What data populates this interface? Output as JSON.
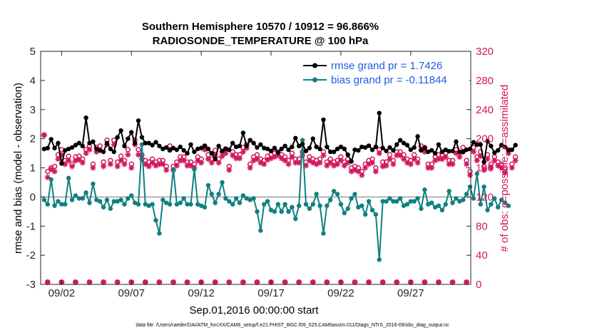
{
  "chart_data": {
    "type": "line",
    "title": "Southern Hemisphere 10570 / 10912 = 96.866%",
    "subtitle": "RADIOSONDE_TEMPERATURE @ 100 hPa",
    "xlabel": "Sep.01,2016 00:00:00 start",
    "ylabel": "rmse and bias (model - observation)",
    "ylabel_right": "# of obs: o=possible; ×=assimilated",
    "ylim": [
      -3,
      5
    ],
    "ylim_right": [
      0,
      320
    ],
    "xlim": [
      0.5,
      31.3
    ],
    "x_ticks": [
      {
        "x": 2,
        "label": "09/02"
      },
      {
        "x": 7,
        "label": "09/07"
      },
      {
        "x": 12,
        "label": "09/12"
      },
      {
        "x": 17,
        "label": "09/17"
      },
      {
        "x": 22,
        "label": "09/22"
      },
      {
        "x": 27,
        "label": "09/27"
      }
    ],
    "y_ticks": [
      "-3",
      "-2",
      "-1",
      "0",
      "1",
      "2",
      "3",
      "4",
      "5"
    ],
    "y_ticks_right": [
      "0",
      "40",
      "80",
      "120",
      "160",
      "200",
      "240",
      "280",
      "320"
    ],
    "zero_line": 0,
    "legend": [
      {
        "label": "rmse grand pr = 1.7426",
        "color": "#000000",
        "marker": "filled-circle"
      },
      {
        "label": "bias grand pr = -0.11844",
        "color": "#0f8080",
        "marker": "filled-circle"
      }
    ],
    "series": [
      {
        "name": "rmse",
        "color": "#000000",
        "values": [
          1.65,
          1.68,
          1.98,
          1.68,
          1.85,
          1.15,
          1.6,
          1.65,
          1.7,
          1.78,
          1.85,
          1.75,
          2.72,
          1.85,
          1.9,
          1.65,
          1.6,
          1.55,
          1.85,
          1.65,
          1.55,
          2.05,
          2.28,
          1.75,
          2.0,
          2.22,
          1.85,
          2.62,
          2.05,
          1.85,
          1.85,
          1.78,
          1.88,
          1.75,
          1.65,
          1.7,
          1.6,
          1.68,
          1.62,
          1.72,
          1.6,
          1.5,
          1.8,
          1.55,
          1.65,
          1.68,
          1.75,
          1.65,
          1.5,
          1.3,
          1.75,
          1.58,
          1.65,
          1.62,
          1.85,
          1.72,
          1.75,
          2.2,
          1.75,
          1.95,
          1.85,
          1.7,
          1.8,
          1.68,
          1.65,
          1.58,
          1.68,
          1.52,
          1.65,
          1.75,
          1.62,
          1.72,
          2.02,
          1.75,
          1.82,
          1.58,
          1.68,
          2.0,
          1.72,
          1.65,
          2.65,
          1.72,
          1.55,
          1.55,
          1.65,
          1.72,
          1.65,
          1.45,
          1.22,
          1.62,
          1.6,
          1.72,
          1.7,
          1.76,
          1.62,
          1.72,
          2.88,
          1.68,
          1.58,
          1.7,
          1.6,
          1.8,
          1.95,
          1.85,
          1.78,
          1.62,
          1.7,
          2.08,
          1.6,
          1.68,
          1.55,
          1.6,
          1.5,
          1.8,
          1.55,
          1.62,
          1.57,
          1.58,
          1.9,
          1.55,
          1.55,
          1.62,
          1.65,
          1.88,
          1.8,
          1.8,
          1.2,
          1.92,
          1.75,
          1.52,
          1.6,
          1.78,
          1.72,
          1.6,
          1.62,
          1.78
        ]
      },
      {
        "name": "bias",
        "color": "#0f8080",
        "values": [
          -0.1,
          -0.25,
          0.6,
          -0.3,
          -0.15,
          -0.25,
          -0.25,
          0.65,
          -0.1,
          0.05,
          -0.05,
          -0.05,
          0.15,
          -0.2,
          0.45,
          -0.1,
          -0.15,
          -0.35,
          -0.1,
          -0.4,
          -0.15,
          -0.15,
          -0.1,
          -0.25,
          -0.05,
          0.05,
          -0.2,
          -0.25,
          1.8,
          -0.25,
          -0.3,
          -0.25,
          -0.8,
          -1.25,
          -0.1,
          -0.2,
          -0.25,
          0.95,
          -0.25,
          -0.2,
          -0.05,
          -0.25,
          -0.25,
          0.95,
          -0.25,
          -0.3,
          -0.35,
          0.4,
          0.1,
          -0.2,
          0.1,
          0.5,
          -0.05,
          -0.15,
          -0.25,
          -0.05,
          -0.2,
          0.05,
          -0.05,
          -0.1,
          -0.05,
          -0.5,
          -1.15,
          -0.25,
          -0.15,
          -0.45,
          -0.5,
          -0.25,
          -0.5,
          -0.25,
          -0.5,
          -0.35,
          -0.75,
          -0.3,
          1.95,
          -0.25,
          -0.4,
          -0.25,
          0.1,
          -0.3,
          -1.25,
          -0.3,
          -0.1,
          0.2,
          0.1,
          -0.25,
          -0.55,
          -0.4,
          -0.05,
          0.1,
          -0.35,
          -0.3,
          -0.6,
          -0.15,
          -0.45,
          -0.6,
          -2.15,
          -0.15,
          -0.15,
          -0.05,
          -0.15,
          -0.15,
          -0.05,
          -0.3,
          -0.25,
          -0.15,
          -0.15,
          -0.05,
          -0.4,
          0.25,
          -0.25,
          -0.2,
          -0.35,
          -0.3,
          -0.45,
          -0.25,
          0.2,
          -0.2,
          -0.05,
          -0.15,
          -0.1,
          0.1,
          0.35,
          -0.05,
          0.8,
          -0.25,
          0.35,
          -0.45,
          -0.25,
          -0.05,
          -0.35,
          -0.1,
          -0.2,
          -0.3
        ]
      },
      {
        "name": "obs_possible",
        "color": "#d0185e",
        "values": [
          205,
          155,
          160,
          162,
          178,
          185,
          170,
          176,
          165,
          175,
          176,
          172,
          185,
          190,
          165,
          188,
          190,
          168,
          198,
          170,
          198,
          168,
          176,
          170,
          185,
          165,
          198,
          185,
          178,
          170,
          168,
          172,
          168,
          170,
          170,
          162,
          190,
          162,
          168,
          175,
          175,
          168,
          168,
          165,
          175,
          172,
          190,
          178,
          172,
          184,
          172,
          182,
          186,
          162,
          182,
          178,
          178,
          188,
          192,
          165,
          175,
          178,
          172,
          170,
          176,
          178,
          180,
          182,
          178,
          175,
          170,
          180,
          172,
          172,
          182,
          168,
          175,
          172,
          170,
          172,
          182,
          168,
          172,
          168,
          170,
          175,
          168,
          172,
          160,
          162,
          160,
          155,
          165,
          170,
          172,
          160,
          185,
          168,
          168,
          178,
          170,
          182,
          182,
          178,
          172,
          170,
          178,
          172,
          190,
          188,
          165,
          165,
          175,
          178,
          178,
          180,
          170,
          170,
          185,
          180,
          188,
          170,
          155,
          188,
          175,
          182,
          162,
          178,
          165,
          175,
          168,
          165,
          158,
          185,
          165,
          175
        ]
      },
      {
        "name": "obs_assimilated",
        "color": "#d0185e",
        "values": [
          205,
          147,
          158,
          155,
          172,
          178,
          165,
          170,
          162,
          170,
          171,
          167,
          180,
          185,
          160,
          182,
          184,
          162,
          192,
          165,
          192,
          162,
          170,
          165,
          178,
          160,
          192,
          178,
          172,
          165,
          162,
          167,
          163,
          165,
          165,
          157,
          185,
          157,
          163,
          170,
          170,
          163,
          163,
          160,
          170,
          167,
          185,
          172,
          167,
          178,
          167,
          176,
          180,
          157,
          177,
          173,
          173,
          182,
          187,
          160,
          170,
          172,
          167,
          165,
          171,
          173,
          175,
          177,
          173,
          170,
          165,
          175,
          167,
          167,
          177,
          163,
          170,
          167,
          165,
          167,
          177,
          163,
          167,
          163,
          165,
          170,
          163,
          167,
          155,
          157,
          155,
          150,
          160,
          165,
          167,
          155,
          180,
          162,
          163,
          172,
          165,
          177,
          177,
          172,
          167,
          165,
          172,
          167,
          185,
          182,
          160,
          160,
          170,
          172,
          172,
          175,
          165,
          165,
          180,
          175,
          182,
          165,
          150,
          182,
          170,
          176,
          157,
          172,
          160,
          170,
          163,
          160,
          153,
          180,
          160,
          170
        ]
      }
    ],
    "footnote": "data file: /Users/raeder/DAI/ATM_forcXX/CAM6_setup/f.e21.FHIST_BGC.f09_025.CAM6assim.011/Diags_NTrS_2016-09/obs_diag_output.nc"
  }
}
